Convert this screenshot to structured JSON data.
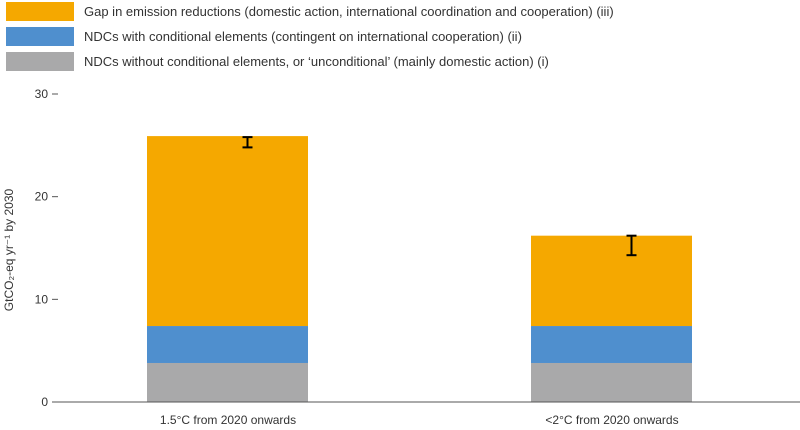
{
  "chart_data": {
    "type": "bar",
    "stacked": true,
    "categories": [
      "1.5°C from 2020 onwards",
      "<2°C from 2020 onwards"
    ],
    "series": [
      {
        "name": "NDCs without conditional elements, or ‘unconditional’ (mainly domestic action) (i)",
        "values": [
          3.8,
          3.8
        ],
        "color": "#a9a9aa"
      },
      {
        "name": "NDCs with conditional elements (contingent on international cooperation) (ii)",
        "values": [
          3.6,
          3.6
        ],
        "color": "#4f8fce"
      },
      {
        "name": "Gap in emission reductions (domestic action, international coordination and cooperation) (iii)",
        "values": [
          18.5,
          8.8
        ],
        "color": "#f5a800"
      }
    ],
    "totals": [
      25.9,
      16.2
    ],
    "error_bars": [
      {
        "center": 25.3,
        "low": 24.8,
        "high": 25.8
      },
      {
        "center": 15.3,
        "low": 14.3,
        "high": 16.2
      }
    ],
    "ylabel": "GtCO₂-eq yr⁻¹ by 2030",
    "ylim": [
      0,
      30
    ],
    "yticks": [
      0,
      10,
      20,
      30
    ],
    "grid": false,
    "legend_placement": "top-left"
  }
}
